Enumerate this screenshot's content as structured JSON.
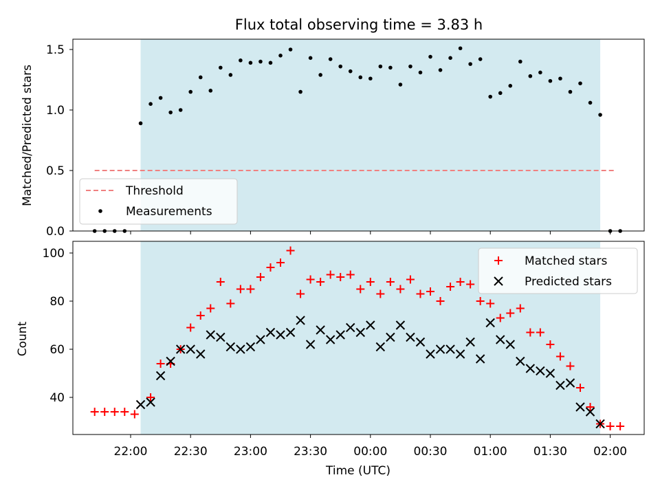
{
  "chart_data": [
    {
      "type": "scatter",
      "title": "Flux total observing time = 3.83 h",
      "xlabel": "",
      "ylabel": "Matched/Predicted stars",
      "ylim": [
        0,
        1.6
      ],
      "yticks": [
        0.0,
        0.5,
        1.0,
        1.5
      ],
      "ytick_labels": [
        "0.0",
        "0.5",
        "1.0",
        "1.5"
      ],
      "shaded_span": [
        "22:05",
        "01:55"
      ],
      "shade_color": "#d3eaf0",
      "threshold": {
        "name": "Threshold",
        "value": 0.5,
        "from": "21:42",
        "to": "02:02",
        "color": "#f08080"
      },
      "legend": {
        "position": "lower-left",
        "entries": [
          "Threshold",
          "Measurements"
        ]
      },
      "series": [
        {
          "name": "Measurements",
          "marker": "dot",
          "color": "#000000",
          "points": [
            [
              "21:42",
              0.0
            ],
            [
              "21:47",
              0.0
            ],
            [
              "21:52",
              0.0
            ],
            [
              "21:57",
              0.0
            ],
            [
              "22:05",
              0.89
            ],
            [
              "22:10",
              1.05
            ],
            [
              "22:15",
              1.1
            ],
            [
              "22:20",
              0.98
            ],
            [
              "22:25",
              1.0
            ],
            [
              "22:30",
              1.15
            ],
            [
              "22:35",
              1.27
            ],
            [
              "22:40",
              1.16
            ],
            [
              "22:45",
              1.35
            ],
            [
              "22:50",
              1.29
            ],
            [
              "22:55",
              1.41
            ],
            [
              "23:00",
              1.39
            ],
            [
              "23:05",
              1.4
            ],
            [
              "23:10",
              1.39
            ],
            [
              "23:15",
              1.45
            ],
            [
              "23:20",
              1.5
            ],
            [
              "23:25",
              1.15
            ],
            [
              "23:30",
              1.43
            ],
            [
              "23:35",
              1.29
            ],
            [
              "23:40",
              1.42
            ],
            [
              "23:45",
              1.36
            ],
            [
              "23:50",
              1.32
            ],
            [
              "23:55",
              1.27
            ],
            [
              "00:00",
              1.26
            ],
            [
              "00:05",
              1.36
            ],
            [
              "00:10",
              1.35
            ],
            [
              "00:15",
              1.21
            ],
            [
              "00:20",
              1.36
            ],
            [
              "00:25",
              1.31
            ],
            [
              "00:30",
              1.44
            ],
            [
              "00:35",
              1.33
            ],
            [
              "00:40",
              1.43
            ],
            [
              "00:45",
              1.51
            ],
            [
              "00:50",
              1.38
            ],
            [
              "00:55",
              1.42
            ],
            [
              "01:00",
              1.11
            ],
            [
              "01:05",
              1.14
            ],
            [
              "01:10",
              1.2
            ],
            [
              "01:15",
              1.4
            ],
            [
              "01:20",
              1.28
            ],
            [
              "01:25",
              1.31
            ],
            [
              "01:30",
              1.24
            ],
            [
              "01:35",
              1.26
            ],
            [
              "01:40",
              1.15
            ],
            [
              "01:45",
              1.22
            ],
            [
              "01:50",
              1.06
            ],
            [
              "01:55",
              0.96
            ],
            [
              "02:00",
              0.0
            ],
            [
              "02:05",
              0.0
            ]
          ]
        }
      ]
    },
    {
      "type": "scatter",
      "title": "",
      "xlabel": "Time (UTC)",
      "ylabel": "Count",
      "ylim": [
        25,
        105
      ],
      "yticks": [
        40,
        60,
        80,
        100
      ],
      "ytick_labels": [
        "40",
        "60",
        "80",
        "100"
      ],
      "x_ticks": [
        "22:00",
        "22:30",
        "23:00",
        "23:30",
        "00:00",
        "00:30",
        "01:00",
        "01:30",
        "02:00"
      ],
      "shaded_span": [
        "22:05",
        "01:55"
      ],
      "shade_color": "#d3eaf0",
      "legend": {
        "position": "upper-right",
        "entries": [
          "Matched stars",
          "Predicted stars"
        ]
      },
      "series": [
        {
          "name": "Matched stars",
          "marker": "plus",
          "color": "#ff0000",
          "points": [
            [
              "21:42",
              34
            ],
            [
              "21:47",
              34
            ],
            [
              "21:52",
              34
            ],
            [
              "21:57",
              34
            ],
            [
              "22:02",
              33
            ],
            [
              "22:10",
              40
            ],
            [
              "22:15",
              54
            ],
            [
              "22:20",
              54
            ],
            [
              "22:25",
              60
            ],
            [
              "22:30",
              69
            ],
            [
              "22:35",
              74
            ],
            [
              "22:40",
              77
            ],
            [
              "22:45",
              88
            ],
            [
              "22:50",
              79
            ],
            [
              "22:55",
              85
            ],
            [
              "23:00",
              85
            ],
            [
              "23:05",
              90
            ],
            [
              "23:10",
              94
            ],
            [
              "23:15",
              96
            ],
            [
              "23:20",
              101
            ],
            [
              "23:25",
              83
            ],
            [
              "23:30",
              89
            ],
            [
              "23:35",
              88
            ],
            [
              "23:40",
              91
            ],
            [
              "23:45",
              90
            ],
            [
              "23:50",
              91
            ],
            [
              "23:55",
              85
            ],
            [
              "00:00",
              88
            ],
            [
              "00:05",
              83
            ],
            [
              "00:10",
              88
            ],
            [
              "00:15",
              85
            ],
            [
              "00:20",
              89
            ],
            [
              "00:25",
              83
            ],
            [
              "00:30",
              84
            ],
            [
              "00:35",
              80
            ],
            [
              "00:40",
              86
            ],
            [
              "00:45",
              88
            ],
            [
              "00:50",
              87
            ],
            [
              "00:55",
              80
            ],
            [
              "01:00",
              79
            ],
            [
              "01:05",
              73
            ],
            [
              "01:10",
              75
            ],
            [
              "01:15",
              77
            ],
            [
              "01:20",
              67
            ],
            [
              "01:25",
              67
            ],
            [
              "01:30",
              62
            ],
            [
              "01:35",
              57
            ],
            [
              "01:40",
              53
            ],
            [
              "01:45",
              44
            ],
            [
              "01:50",
              36
            ],
            [
              "01:55",
              29
            ],
            [
              "02:00",
              28
            ],
            [
              "02:05",
              28
            ]
          ]
        },
        {
          "name": "Predicted stars",
          "marker": "x",
          "color": "#000000",
          "points": [
            [
              "22:05",
              37
            ],
            [
              "22:10",
              38
            ],
            [
              "22:15",
              49
            ],
            [
              "22:20",
              55
            ],
            [
              "22:25",
              60
            ],
            [
              "22:30",
              60
            ],
            [
              "22:35",
              58
            ],
            [
              "22:40",
              66
            ],
            [
              "22:45",
              65
            ],
            [
              "22:50",
              61
            ],
            [
              "22:55",
              60
            ],
            [
              "23:00",
              61
            ],
            [
              "23:05",
              64
            ],
            [
              "23:10",
              67
            ],
            [
              "23:15",
              66
            ],
            [
              "23:20",
              67
            ],
            [
              "23:25",
              72
            ],
            [
              "23:30",
              62
            ],
            [
              "23:35",
              68
            ],
            [
              "23:40",
              64
            ],
            [
              "23:45",
              66
            ],
            [
              "23:50",
              69
            ],
            [
              "23:55",
              67
            ],
            [
              "00:00",
              70
            ],
            [
              "00:05",
              61
            ],
            [
              "00:10",
              65
            ],
            [
              "00:15",
              70
            ],
            [
              "00:20",
              65
            ],
            [
              "00:25",
              63
            ],
            [
              "00:30",
              58
            ],
            [
              "00:35",
              60
            ],
            [
              "00:40",
              60
            ],
            [
              "00:45",
              58
            ],
            [
              "00:50",
              63
            ],
            [
              "00:55",
              56
            ],
            [
              "01:00",
              71
            ],
            [
              "01:05",
              64
            ],
            [
              "01:10",
              62
            ],
            [
              "01:15",
              55
            ],
            [
              "01:20",
              52
            ],
            [
              "01:25",
              51
            ],
            [
              "01:30",
              50
            ],
            [
              "01:35",
              45
            ],
            [
              "01:40",
              46
            ],
            [
              "01:45",
              36
            ],
            [
              "01:50",
              34
            ],
            [
              "01:55",
              29
            ]
          ]
        }
      ]
    }
  ]
}
